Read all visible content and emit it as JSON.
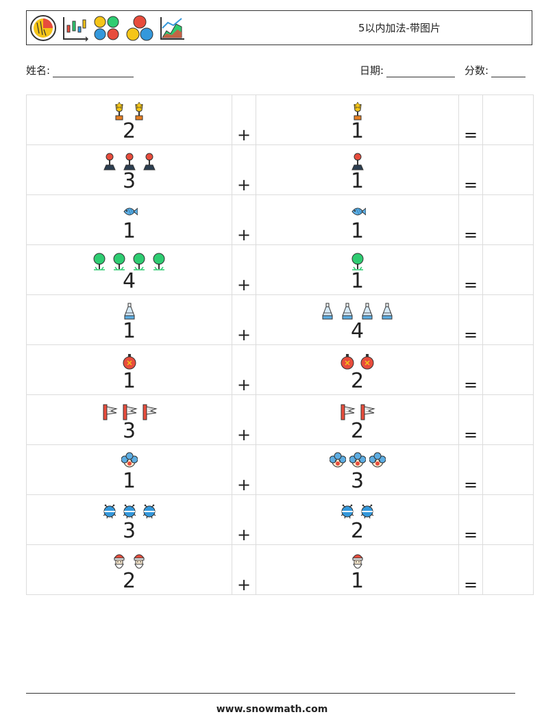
{
  "header": {
    "title": "5以内加法-带图片"
  },
  "meta": {
    "name_label": "姓名:",
    "date_label": "日期:",
    "score_label": "分数:"
  },
  "plus_sign": "+",
  "equals_sign": "=",
  "rows": [
    {
      "a": 2,
      "b": 1,
      "icon": "trophy-icon"
    },
    {
      "a": 3,
      "b": 1,
      "icon": "joystick-icon"
    },
    {
      "a": 1,
      "b": 1,
      "icon": "fish-icon"
    },
    {
      "a": 4,
      "b": 1,
      "icon": "tree-icon"
    },
    {
      "a": 1,
      "b": 4,
      "icon": "potion-bottle-icon"
    },
    {
      "a": 1,
      "b": 2,
      "icon": "ornament-icon"
    },
    {
      "a": 3,
      "b": 2,
      "icon": "flag-icon"
    },
    {
      "a": 1,
      "b": 3,
      "icon": "clown-icon"
    },
    {
      "a": 3,
      "b": 2,
      "icon": "bug-icon"
    },
    {
      "a": 2,
      "b": 1,
      "icon": "santa-icon"
    }
  ],
  "footer": {
    "site": "www.snowmath.com"
  }
}
